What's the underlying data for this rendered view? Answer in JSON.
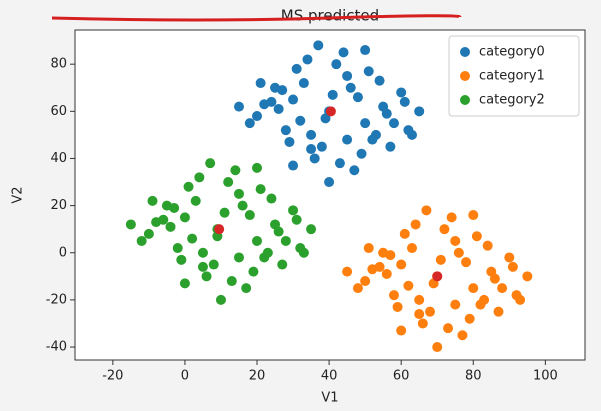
{
  "chart_data": {
    "type": "scatter",
    "title": "MS predicted",
    "xlabel": "V1",
    "ylabel": "V2",
    "xlim": [
      -30.5,
      111
    ],
    "ylim": [
      -45.5,
      94.5
    ],
    "xticks": [
      -20,
      0,
      20,
      40,
      60,
      80,
      100
    ],
    "yticks": [
      -40,
      -20,
      0,
      20,
      40,
      60,
      80
    ],
    "legend": "upper right",
    "series": [
      {
        "name": "category0",
        "color": "#1f77b4",
        "x": [
          40,
          30,
          50,
          25,
          55,
          35,
          45,
          20,
          60,
          38,
          42,
          28,
          52,
          33,
          48,
          22,
          58,
          36,
          44,
          31,
          49,
          26,
          54,
          39,
          41,
          65,
          15,
          47,
          34,
          57,
          18,
          62,
          29,
          51,
          43,
          37,
          46,
          24,
          56,
          32,
          53,
          27,
          61,
          21,
          63,
          40,
          45,
          35,
          50,
          30
        ],
        "y": [
          60,
          65,
          55,
          70,
          62,
          50,
          75,
          58,
          68,
          45,
          80,
          52,
          48,
          72,
          66,
          63,
          55,
          40,
          85,
          78,
          42,
          61,
          73,
          57,
          67,
          60,
          62,
          35,
          82,
          45,
          55,
          52,
          47,
          77,
          38,
          88,
          70,
          64,
          59,
          56,
          50,
          69,
          64,
          72,
          50,
          30,
          48,
          44,
          86,
          37
        ]
      },
      {
        "name": "category1",
        "color": "#ff7f0e",
        "x": [
          70,
          60,
          80,
          55,
          85,
          65,
          75,
          50,
          90,
          68,
          72,
          58,
          82,
          63,
          78,
          52,
          88,
          66,
          74,
          61,
          79,
          56,
          84,
          69,
          71,
          95,
          45,
          77,
          64,
          87,
          48,
          92,
          59,
          81,
          73,
          67,
          76,
          54,
          86,
          62,
          83,
          57,
          91,
          51,
          93,
          70,
          75,
          65,
          80,
          60
        ],
        "y": [
          -10,
          -5,
          -15,
          0,
          -8,
          -20,
          5,
          -12,
          -2,
          -25,
          10,
          -18,
          -22,
          2,
          -4,
          -7,
          -15,
          -30,
          15,
          8,
          -28,
          -9,
          3,
          -13,
          -3,
          -10,
          -8,
          -35,
          12,
          -25,
          -15,
          -18,
          -23,
          7,
          -32,
          18,
          0,
          -6,
          -11,
          -14,
          -20,
          -1,
          -6,
          2,
          -20,
          -40,
          -22,
          -26,
          16,
          -33
        ]
      },
      {
        "name": "category2",
        "color": "#2ca02c",
        "x": [
          9,
          0,
          20,
          -5,
          25,
          5,
          15,
          -10,
          30,
          8,
          12,
          -2,
          22,
          3,
          18,
          -8,
          28,
          6,
          14,
          1,
          19,
          -4,
          24,
          9,
          11,
          35,
          -15,
          17,
          4,
          27,
          -12,
          32,
          -1,
          21,
          13,
          7,
          16,
          -6,
          26,
          2,
          23,
          -3,
          31,
          -9,
          33,
          10,
          15,
          5,
          20,
          0
        ],
        "y": [
          10,
          15,
          5,
          20,
          12,
          0,
          25,
          8,
          18,
          -5,
          30,
          2,
          -2,
          22,
          16,
          13,
          5,
          -10,
          35,
          28,
          -8,
          11,
          23,
          7,
          17,
          10,
          12,
          -15,
          32,
          -5,
          5,
          2,
          -3,
          27,
          -12,
          38,
          20,
          14,
          9,
          6,
          0,
          19,
          14,
          22,
          0,
          -20,
          -2,
          -6,
          36,
          -13
        ]
      }
    ],
    "centroids": {
      "color": "#d62728",
      "x": [
        40.5,
        70,
        9.5
      ],
      "y": [
        60,
        -10,
        10
      ]
    }
  }
}
